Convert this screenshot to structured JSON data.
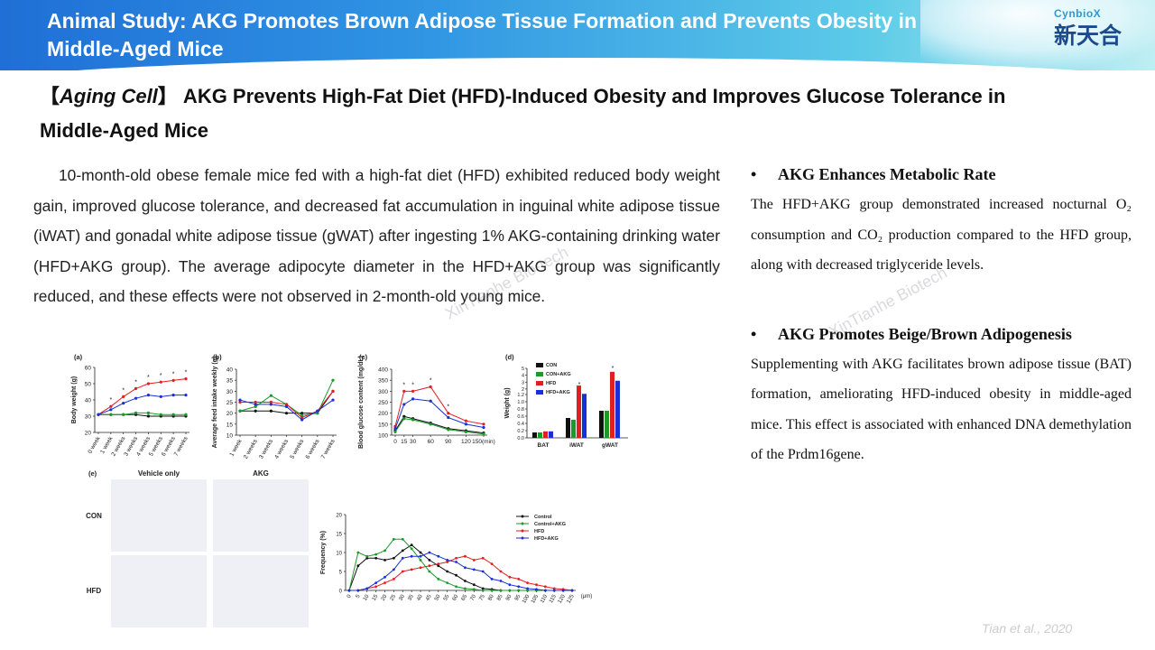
{
  "header": {
    "title": "Animal Study: AKG Promotes Brown Adipose Tissue Formation and Prevents Obesity in Middle-Aged Mice",
    "logo_en": "CynbioX",
    "logo_cn": "新天合"
  },
  "subtitle": {
    "bracket_open": "【",
    "journal": "Aging Cell",
    "bracket_close": "】",
    "text": " AKG Prevents High-Fat Diet (HFD)-Induced Obesity and Improves Glucose Tolerance in Middle-Aged Mice"
  },
  "left_paragraph": "10-month-old obese female mice fed with a high-fat diet (HFD) exhibited reduced body weight gain, improved glucose tolerance, and decreased fat accumulation in inguinal white adipose tissue (iWAT) and gonadal white adipose tissue (gWAT) after ingesting 1% AKG-containing drinking water (HFD+AKG group). The average adipocyte diameter in the HFD+AKG group was significantly reduced, and these effects were not observed in 2-month-old young mice.",
  "right_sections": [
    {
      "bullet": "•",
      "heading": "AKG Enhances Metabolic Rate",
      "body": "The HFD+AKG group demonstrated increased nocturnal O₂ consumption and CO₂ production compared to the HFD group, along with decreased triglyceride levels."
    },
    {
      "bullet": "•",
      "heading": "AKG Promotes Beige/Brown Adipogenesis",
      "body": "Supplementing with AKG facilitates brown adipose tissue (BAT) formation, ameliorating HFD-induced obesity in middle-aged mice. This effect is associated with enhanced DNA demethylation of the Prdm16gene."
    }
  ],
  "watermarks": [
    "XinTianhe Bio-tech",
    "XinTianhe Biotech"
  ],
  "credit": "Tian et al., 2020",
  "colors": {
    "con": "#111111",
    "con_akg": "#1a9a2a",
    "hfd": "#e02020",
    "hfd_akg": "#1a2fd8"
  },
  "chart_data": [
    {
      "panel": "(a)",
      "type": "line",
      "ylabel": "Body weight (g)",
      "ylim": [
        20,
        60
      ],
      "yticks": [
        20,
        30,
        40,
        50,
        60
      ],
      "categories": [
        "0 week",
        "1 week",
        "2 weeks",
        "3 weeks",
        "4 weeks",
        "5 weeks",
        "6 weeks",
        "7 weeks"
      ],
      "series": [
        {
          "values": [
            31,
            31,
            31,
            31,
            30,
            30,
            30,
            30
          ]
        },
        {
          "values": [
            31,
            31,
            31,
            32,
            32,
            31,
            31,
            31
          ]
        },
        {
          "values": [
            31,
            36,
            42,
            47,
            50,
            51,
            52,
            53
          ]
        },
        {
          "values": [
            31,
            34,
            38,
            41,
            43,
            42,
            43,
            43
          ]
        }
      ],
      "annotations": [
        "*",
        "*",
        "*",
        "*",
        "*",
        "*",
        "*"
      ]
    },
    {
      "panel": "(b)",
      "type": "line",
      "ylabel": "Average feed intake weekly (g)",
      "ylim": [
        10,
        40
      ],
      "yticks": [
        10,
        15,
        20,
        25,
        30,
        35,
        40
      ],
      "categories": [
        "1 week",
        "2 weeks",
        "3 weeks",
        "4 weeks",
        "5 weeks",
        "6 weeks",
        "7 weeks"
      ],
      "series": [
        {
          "values": [
            21,
            21,
            21,
            20,
            20,
            20,
            30
          ]
        },
        {
          "values": [
            21,
            23,
            28,
            24,
            19,
            20,
            35
          ]
        },
        {
          "values": [
            25,
            25,
            25,
            24,
            18,
            21,
            30
          ]
        },
        {
          "values": [
            26,
            24,
            24,
            23,
            17,
            21,
            26
          ]
        }
      ]
    },
    {
      "panel": "(c)",
      "type": "line",
      "ylabel": "Blood glucose content (mg/dL)",
      "ylim": [
        100,
        400
      ],
      "yticks": [
        100,
        150,
        200,
        250,
        300,
        350,
        400
      ],
      "x": [
        0,
        15,
        30,
        60,
        90,
        120,
        150
      ],
      "xtick_labels": [
        "0",
        "15",
        "30",
        "60",
        "90",
        "120",
        "150(min)"
      ],
      "series": [
        {
          "values": [
            120,
            185,
            175,
            155,
            130,
            120,
            110
          ]
        },
        {
          "values": [
            115,
            175,
            170,
            150,
            125,
            115,
            105
          ]
        },
        {
          "values": [
            140,
            300,
            300,
            320,
            200,
            165,
            150
          ]
        },
        {
          "values": [
            130,
            240,
            265,
            255,
            180,
            150,
            135
          ]
        }
      ],
      "annotations": [
        "*",
        "*",
        "*",
        "*"
      ]
    },
    {
      "panel": "(d)",
      "type": "bar",
      "ylabel": "Weight (g)",
      "categories": [
        "BAT",
        "iWAT",
        "gWAT"
      ],
      "yticks": [
        "0.0",
        "0.2",
        "0.4",
        "0.6",
        "0.8",
        "1.0",
        "1.2",
        "2",
        "3",
        "4",
        "5"
      ],
      "series": [
        {
          "name": "CON",
          "values": [
            0.15,
            0.55,
            0.75
          ]
        },
        {
          "name": "CON+AKG",
          "values": [
            0.15,
            0.5,
            0.75
          ]
        },
        {
          "name": "HFD",
          "values": [
            0.18,
            2.5,
            4.5
          ]
        },
        {
          "name": "HFD+AKG",
          "values": [
            0.18,
            1.3,
            3.2
          ]
        }
      ],
      "annotations": [
        "*",
        "*"
      ]
    },
    {
      "panel": "(e)",
      "type": "image",
      "column_labels": [
        "Vehicle only",
        "AKG"
      ],
      "row_labels": [
        "CON",
        "HFD"
      ]
    },
    {
      "type": "line",
      "ylabel": "Frequency (%)",
      "ylim": [
        0,
        20
      ],
      "yticks": [
        0,
        5,
        10,
        15,
        20
      ],
      "x": [
        0,
        5,
        10,
        15,
        20,
        25,
        30,
        35,
        40,
        45,
        50,
        55,
        60,
        65,
        70,
        75,
        80,
        85,
        90,
        95,
        100,
        105,
        110,
        115,
        120,
        125
      ],
      "xtick_labels": [
        "0",
        "5",
        "10",
        "15",
        "20",
        "25",
        "30",
        "35",
        "40",
        "45",
        "50",
        "55",
        "60",
        "65",
        "70",
        "75",
        "80",
        "85",
        "90",
        "95",
        "100",
        "105",
        "110",
        "115",
        "120",
        "125"
      ],
      "x_unit": "(μm)",
      "series": [
        {
          "name": "Control",
          "values": [
            0,
            6.5,
            8.5,
            8.5,
            8,
            8.5,
            10.5,
            12,
            10,
            8,
            6.5,
            5,
            4,
            2.5,
            1.5,
            0.5,
            0.3,
            0,
            0,
            0,
            0,
            0,
            0,
            0,
            0,
            0
          ]
        },
        {
          "name": "Control+AKG",
          "values": [
            0,
            10,
            9,
            9.5,
            10.5,
            13.5,
            13.5,
            11,
            8,
            5,
            3,
            2,
            1,
            0.5,
            0.3,
            0,
            0,
            0,
            0,
            0,
            0,
            0,
            0,
            0,
            0,
            0
          ]
        },
        {
          "name": "HFD",
          "values": [
            0,
            0,
            0.5,
            1,
            2,
            3,
            5,
            5.5,
            6,
            6.5,
            7,
            7.5,
            8.5,
            9,
            8,
            8.5,
            7,
            5,
            3.5,
            3,
            2,
            1.5,
            1,
            0.5,
            0.3,
            0
          ]
        },
        {
          "name": "HFD+AKG",
          "values": [
            0,
            0,
            0.5,
            2,
            3.5,
            5.5,
            8.5,
            9,
            9,
            10,
            9,
            8,
            7.5,
            6,
            5.5,
            5,
            3,
            2.5,
            1.5,
            1,
            0.5,
            0.3,
            0,
            0,
            0,
            0
          ]
        }
      ]
    }
  ]
}
